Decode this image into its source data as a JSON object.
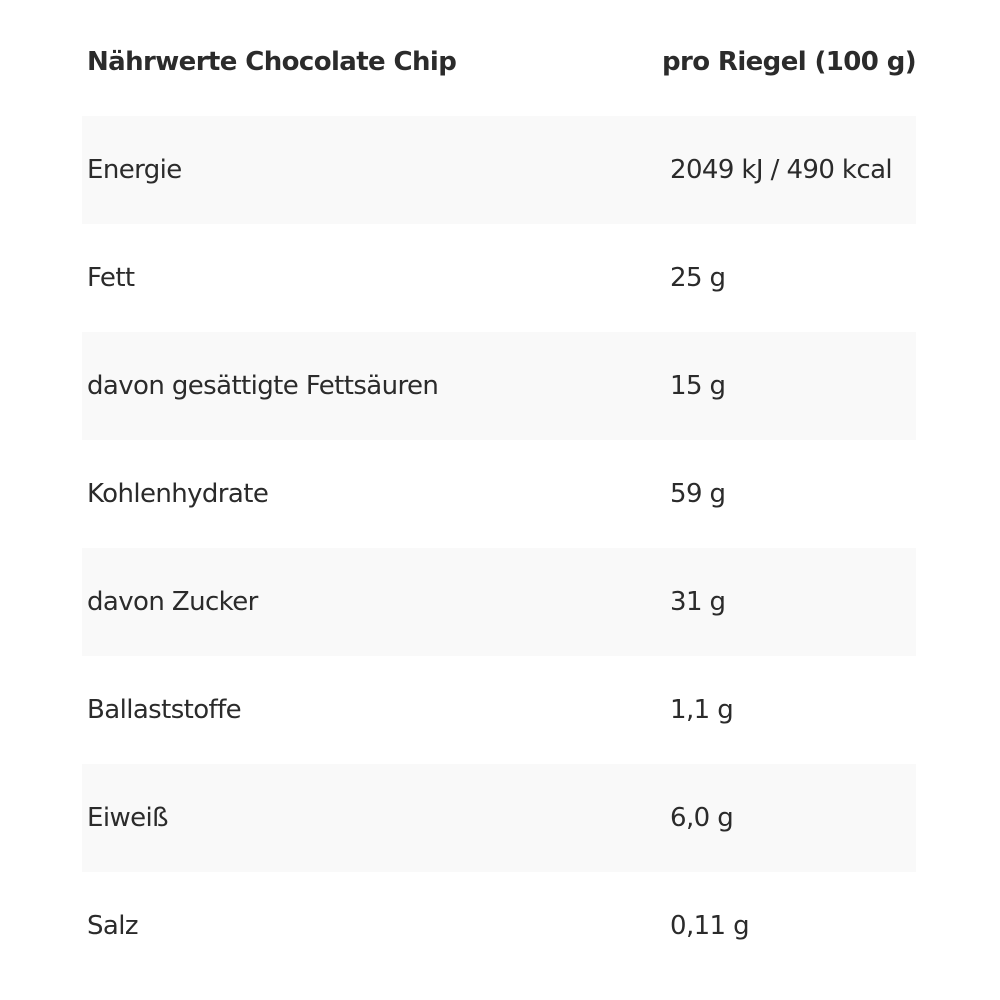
{
  "header": {
    "label": "Nährwerte Chocolate Chip",
    "value": "pro Riegel (100 g)"
  },
  "rows": [
    {
      "label": "Energie",
      "value": "2049 kJ / 490 kcal"
    },
    {
      "label": "Fett",
      "value": "25 g"
    },
    {
      "label": "davon gesättigte Fettsäuren",
      "value": "15 g"
    },
    {
      "label": "Kohlenhydrate",
      "value": "59 g"
    },
    {
      "label": "davon Zucker",
      "value": "31 g"
    },
    {
      "label": "Ballaststoffe",
      "value": "1,1 g"
    },
    {
      "label": "Eiweiß",
      "value": "6,0 g"
    },
    {
      "label": "Salz",
      "value": "0,11 g"
    }
  ]
}
